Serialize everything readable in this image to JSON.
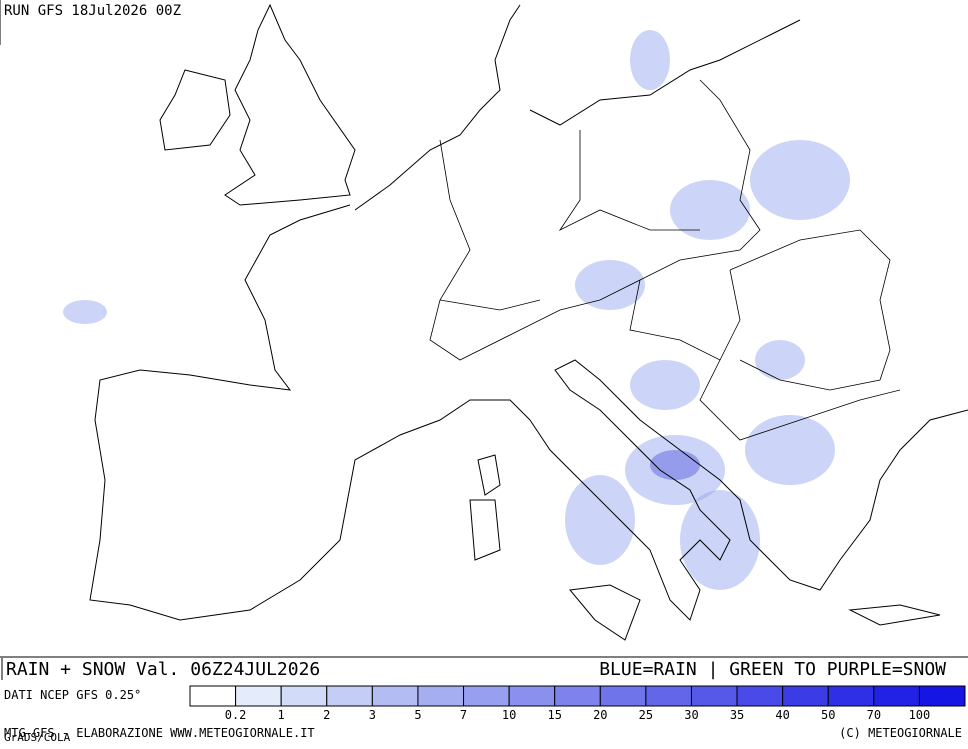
{
  "header": {
    "run": "RUN GFS 18Jul2026 00Z"
  },
  "footer": {
    "title": "RAIN + SNOW Val. 06Z24JUL2026",
    "legend_note": "BLUE=RAIN | GREEN TO PURPLE=SNOW",
    "credit": "MTG-GFS - ELABORAZIONE WWW.METEOGIORNALE.IT",
    "software": "GrADS/COLA",
    "copyright": "(C) METEOGIORNALE"
  },
  "colorbar": {
    "source": "DATI NCEP GFS 0.25°",
    "ticks": [
      0.2,
      1,
      2,
      3,
      5,
      7,
      10,
      15,
      20,
      25,
      30,
      35,
      40,
      50,
      70,
      100
    ],
    "colors": [
      "#ffffff",
      "#e4ebfb",
      "#d2dcf8",
      "#c3cdf5",
      "#b3bdf3",
      "#a4aef1",
      "#969ff0",
      "#8a90ee",
      "#7d82ec",
      "#7074ea",
      "#6366e9",
      "#5658e8",
      "#494ae7",
      "#3c3ce6",
      "#2f2fe6",
      "#2222e6",
      "#1515e4"
    ]
  }
}
